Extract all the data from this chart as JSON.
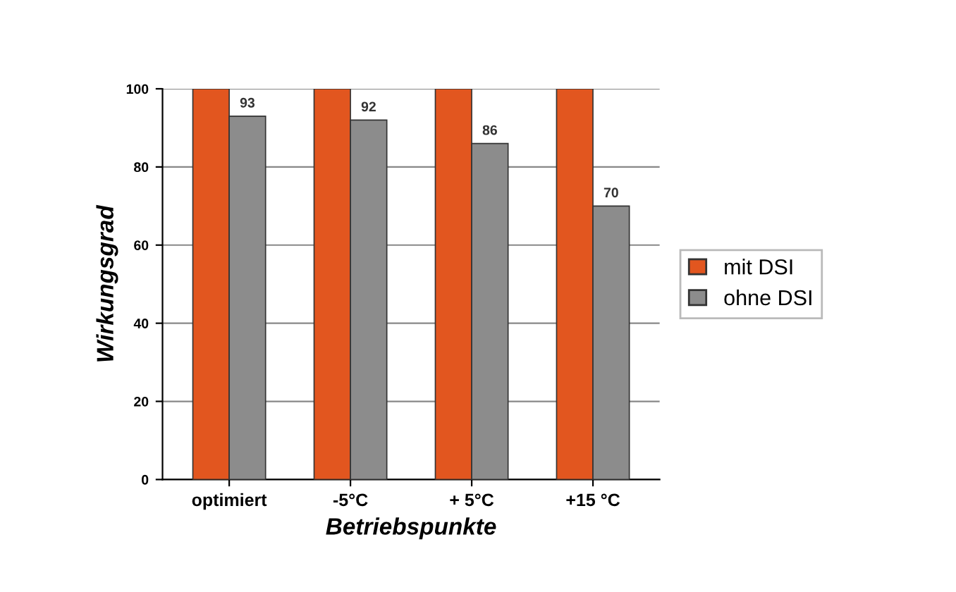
{
  "chart_data": {
    "type": "bar",
    "xlabel": "Betriebspunkte",
    "ylabel": "Wirkungsgrad",
    "categories": [
      "optimiert",
      "-5°C",
      "+ 5°C",
      "+15 °C"
    ],
    "series": [
      {
        "name": "mit DSI",
        "color": "#e2561f",
        "values": [
          100,
          100,
          100,
          100
        ],
        "value_labels": [
          null,
          null,
          null,
          null
        ]
      },
      {
        "name": "ohne DSI",
        "color": "#8c8c8c",
        "values": [
          93,
          92,
          86,
          70
        ],
        "value_labels": [
          "93",
          "92",
          "86",
          "70"
        ]
      }
    ],
    "ylim": [
      0,
      100
    ],
    "yticks": [
      0,
      20,
      40,
      60,
      80,
      100
    ],
    "grid": "y",
    "legend": "right"
  }
}
